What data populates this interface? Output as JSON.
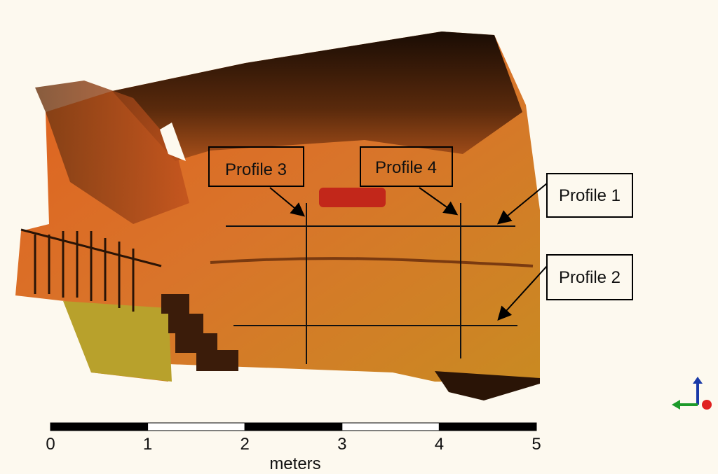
{
  "annotations": [
    {
      "label": "Profile 3"
    },
    {
      "label": "Profile 4"
    },
    {
      "label": "Profile 1"
    },
    {
      "label": "Profile 2"
    }
  ],
  "scale_bar": {
    "ticks": [
      0,
      1,
      2,
      3,
      4,
      5
    ],
    "unit": "meters"
  }
}
